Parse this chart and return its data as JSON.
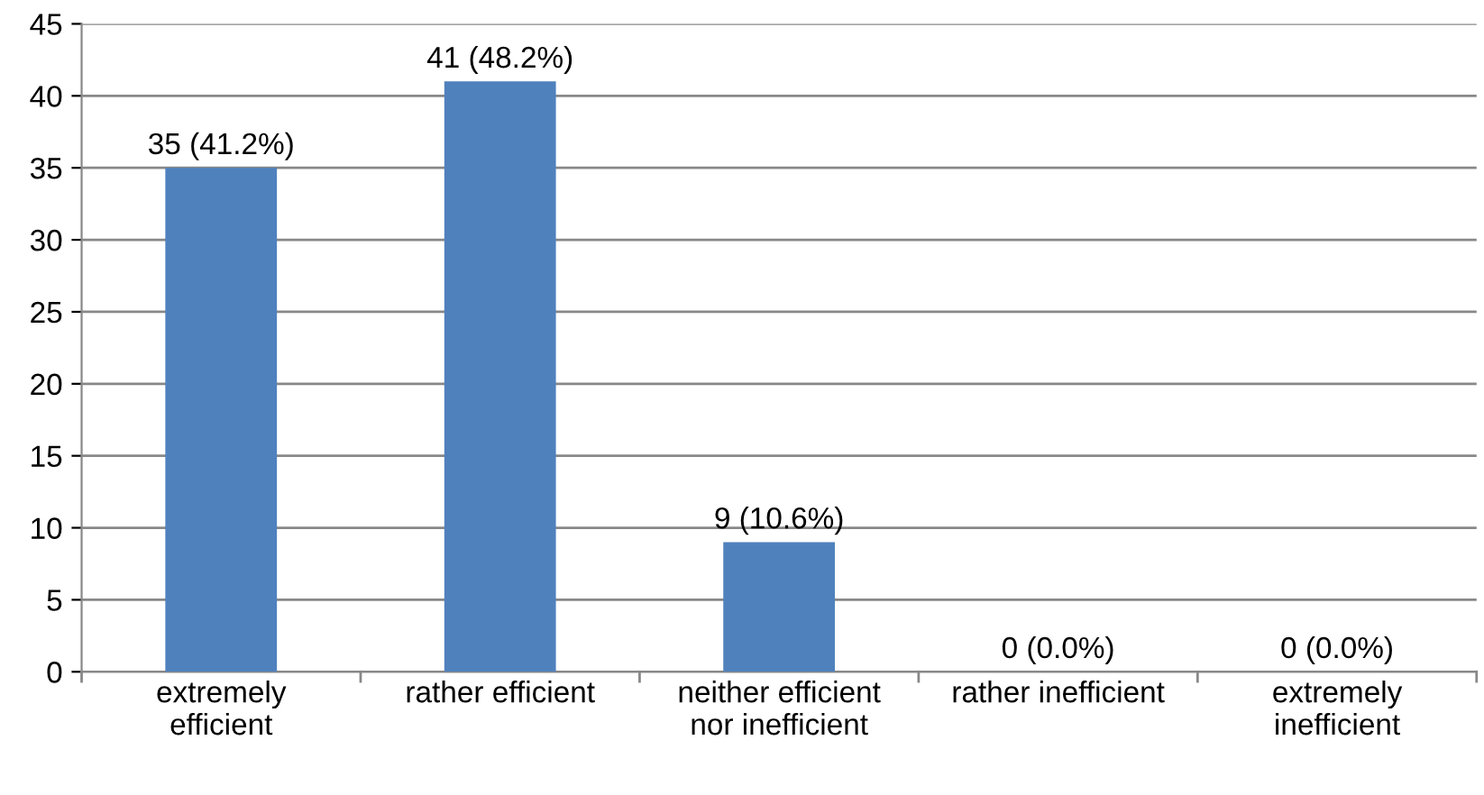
{
  "chart_data": {
    "type": "bar",
    "categories": [
      "extremely\nefficient",
      "rather efficient",
      "neither efficient\nnor inefficient",
      "rather inefficient",
      "extremely\ninefficient"
    ],
    "values": [
      35,
      41,
      9,
      0,
      0
    ],
    "value_labels": [
      "35 (41.2%)",
      "41 (48.2%)",
      "9 (10.6%)",
      "0 (0.0%)",
      "0 (0.0%)"
    ],
    "color": "#4f81bd",
    "ylim": [
      0,
      45
    ],
    "yticks": [
      0,
      5,
      10,
      15,
      20,
      25,
      30,
      35,
      40,
      45
    ],
    "grid": "y",
    "legend": false
  }
}
